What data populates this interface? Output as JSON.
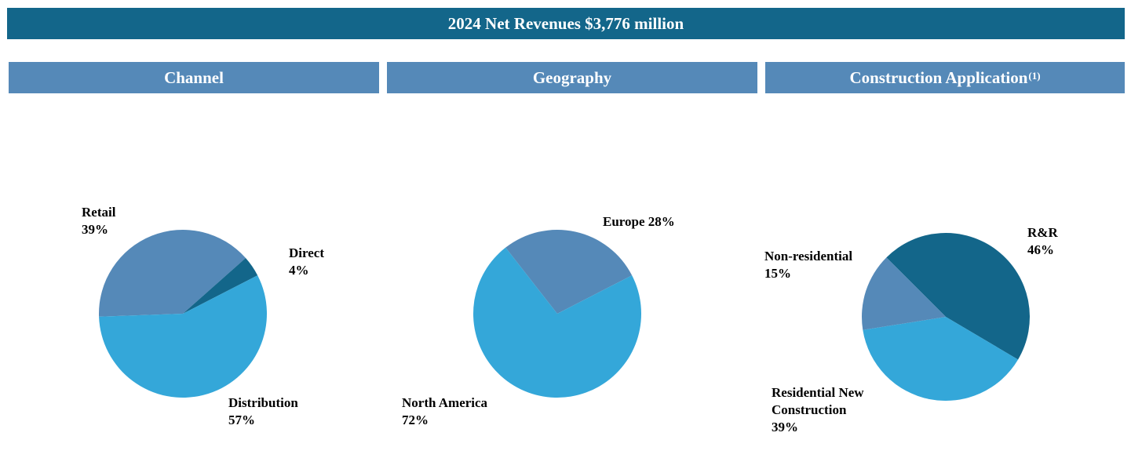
{
  "banner": "2024 Net Revenues $3,776 million",
  "chart_data": [
    {
      "type": "pie",
      "title": "Channel",
      "categories": [
        "Retail",
        "Direct",
        "Distribution"
      ],
      "values": [
        39,
        4,
        57
      ],
      "value_labels": [
        "39%",
        "4%",
        "57%"
      ],
      "colors": [
        "#5589b8",
        "#13668a",
        "#34a7d9"
      ]
    },
    {
      "type": "pie",
      "title": "Geography",
      "categories": [
        "Europe",
        "North America"
      ],
      "values": [
        28,
        72
      ],
      "value_labels": [
        "28%",
        "72%"
      ],
      "colors": [
        "#5589b8",
        "#34a7d9"
      ]
    },
    {
      "type": "pie",
      "title": "Construction Application",
      "title_superscript": "(1)",
      "categories": [
        "R&R",
        "Residential New Construction",
        "Non-residential"
      ],
      "values": [
        46,
        39,
        15
      ],
      "value_labels": [
        "46%",
        "39%",
        "15%"
      ],
      "colors": [
        "#13668a",
        "#34a7d9",
        "#5589b8"
      ]
    }
  ]
}
